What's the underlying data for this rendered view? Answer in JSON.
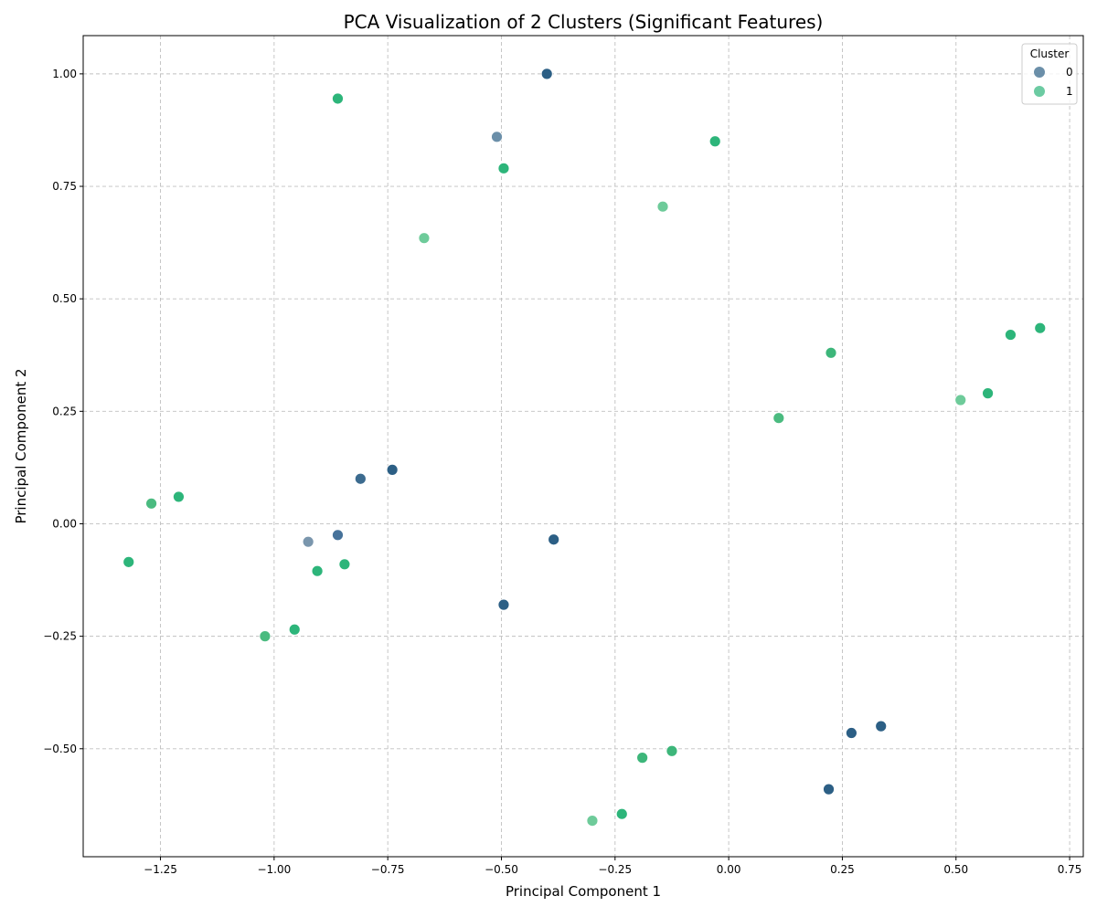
{
  "chart_data": {
    "type": "scatter",
    "title": "PCA Visualization of 2 Clusters (Significant Features)",
    "xlabel": "Principal Component 1",
    "ylabel": "Principal Component 2",
    "xlim": [
      -1.42,
      0.78
    ],
    "ylim": [
      -0.74,
      1.085
    ],
    "x_ticks": [
      -1.25,
      -1.0,
      -0.75,
      -0.5,
      -0.25,
      0.0,
      0.25,
      0.5,
      0.75
    ],
    "x_tick_labels": [
      "−1.25",
      "−1.00",
      "−0.75",
      "−0.50",
      "−0.25",
      "0.00",
      "0.25",
      "0.50",
      "0.75"
    ],
    "y_ticks": [
      -0.5,
      -0.25,
      0.0,
      0.25,
      0.5,
      0.75,
      1.0
    ],
    "y_tick_labels": [
      "−0.50",
      "−0.25",
      "0.00",
      "0.25",
      "0.50",
      "0.75",
      "1.00"
    ],
    "grid": true,
    "legend": {
      "title": "Cluster",
      "position": "top-right",
      "entries": [
        {
          "label": "0",
          "color": "#2c5f85"
        },
        {
          "label": "1",
          "color": "#2db57a"
        }
      ]
    },
    "series": [
      {
        "name": "0",
        "points": [
          {
            "x": -0.4,
            "y": 1.0,
            "color": "#2c5f85"
          },
          {
            "x": -0.51,
            "y": 0.86,
            "color": "#6b8fa9"
          },
          {
            "x": -0.74,
            "y": 0.12,
            "color": "#2c5f85"
          },
          {
            "x": -0.81,
            "y": 0.1,
            "color": "#3c6b8f"
          },
          {
            "x": -0.86,
            "y": -0.025,
            "color": "#46729a"
          },
          {
            "x": -0.925,
            "y": -0.04,
            "color": "#7a96ad"
          },
          {
            "x": -0.385,
            "y": -0.035,
            "color": "#2c5f85"
          },
          {
            "x": -0.495,
            "y": -0.18,
            "color": "#2c5f85"
          },
          {
            "x": 0.335,
            "y": -0.45,
            "color": "#2c5f85"
          },
          {
            "x": 0.27,
            "y": -0.465,
            "color": "#2c5f85"
          },
          {
            "x": 0.22,
            "y": -0.59,
            "color": "#2c5f85"
          }
        ]
      },
      {
        "name": "1",
        "points": [
          {
            "x": -0.86,
            "y": 0.945,
            "color": "#2db57a"
          },
          {
            "x": -0.03,
            "y": 0.85,
            "color": "#2db57a"
          },
          {
            "x": -0.495,
            "y": 0.79,
            "color": "#2db57a"
          },
          {
            "x": -0.145,
            "y": 0.705,
            "color": "#6ecb9a"
          },
          {
            "x": -0.67,
            "y": 0.635,
            "color": "#6ecb9a"
          },
          {
            "x": 0.685,
            "y": 0.435,
            "color": "#2db57a"
          },
          {
            "x": 0.62,
            "y": 0.42,
            "color": "#2db57a"
          },
          {
            "x": 0.225,
            "y": 0.38,
            "color": "#3db67a"
          },
          {
            "x": 0.57,
            "y": 0.29,
            "color": "#2db57a"
          },
          {
            "x": 0.51,
            "y": 0.275,
            "color": "#6ecb9a"
          },
          {
            "x": 0.11,
            "y": 0.235,
            "color": "#4bbb80"
          },
          {
            "x": -1.21,
            "y": 0.06,
            "color": "#2db57a"
          },
          {
            "x": -1.27,
            "y": 0.045,
            "color": "#4bbb80"
          },
          {
            "x": -1.32,
            "y": -0.085,
            "color": "#2db57a"
          },
          {
            "x": -0.905,
            "y": -0.105,
            "color": "#2db57a"
          },
          {
            "x": -0.845,
            "y": -0.09,
            "color": "#2db57a"
          },
          {
            "x": -0.955,
            "y": -0.235,
            "color": "#2db57a"
          },
          {
            "x": -1.02,
            "y": -0.25,
            "color": "#4bbb80"
          },
          {
            "x": -0.125,
            "y": -0.505,
            "color": "#3db67a"
          },
          {
            "x": -0.19,
            "y": -0.52,
            "color": "#3db67a"
          },
          {
            "x": -0.235,
            "y": -0.645,
            "color": "#2db57a"
          },
          {
            "x": -0.3,
            "y": -0.66,
            "color": "#6ecb9a"
          }
        ]
      }
    ]
  }
}
